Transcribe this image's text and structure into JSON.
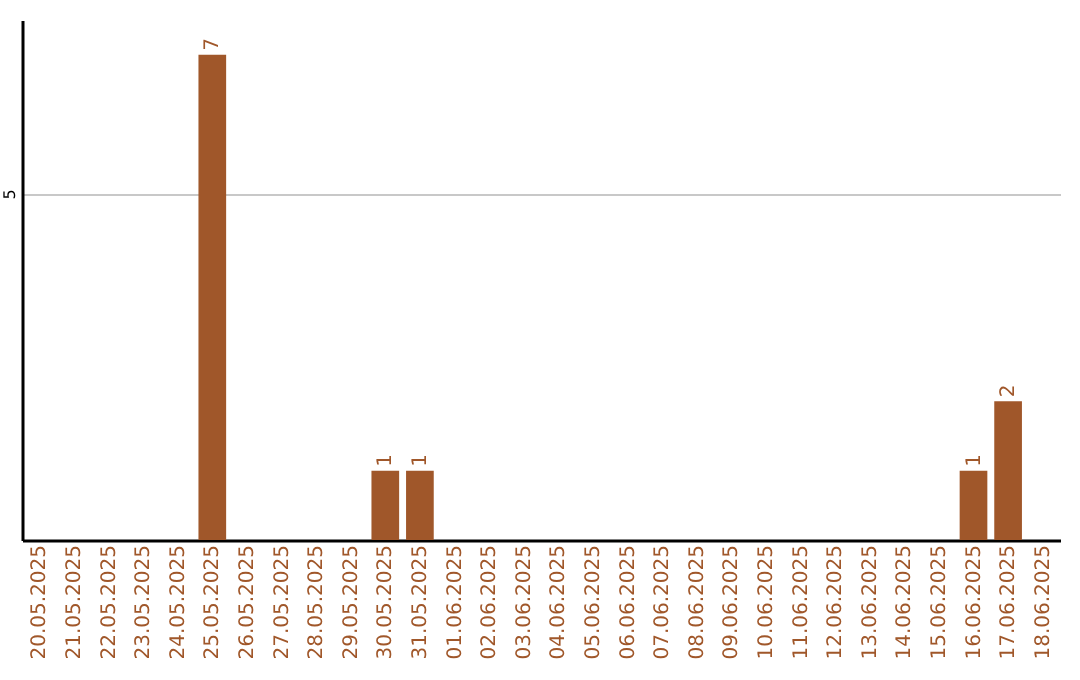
{
  "chart_data": {
    "type": "bar",
    "categories": [
      "20.05.2025",
      "21.05.2025",
      "22.05.2025",
      "23.05.2025",
      "24.05.2025",
      "25.05.2025",
      "26.05.2025",
      "27.05.2025",
      "28.05.2025",
      "29.05.2025",
      "30.05.2025",
      "31.05.2025",
      "01.06.2025",
      "02.06.2025",
      "03.06.2025",
      "04.06.2025",
      "05.06.2025",
      "06.06.2025",
      "07.06.2025",
      "08.06.2025",
      "09.06.2025",
      "10.06.2025",
      "11.06.2025",
      "12.06.2025",
      "13.06.2025",
      "14.06.2025",
      "15.06.2025",
      "16.06.2025",
      "17.06.2025",
      "18.06.2025"
    ],
    "values": [
      0,
      0,
      0,
      0,
      0,
      7,
      0,
      0,
      0,
      0,
      1,
      1,
      0,
      0,
      0,
      0,
      0,
      0,
      0,
      0,
      0,
      0,
      0,
      0,
      0,
      0,
      0,
      1,
      2,
      0
    ],
    "value_labels": [
      null,
      null,
      null,
      null,
      null,
      "7",
      null,
      null,
      null,
      null,
      "1",
      "1",
      null,
      null,
      null,
      null,
      null,
      null,
      null,
      null,
      null,
      null,
      null,
      null,
      null,
      null,
      null,
      "1",
      "2",
      null
    ],
    "color": "#a0572a",
    "ylim": [
      0,
      7.5
    ],
    "yticks": [
      5
    ],
    "grid": "y"
  }
}
